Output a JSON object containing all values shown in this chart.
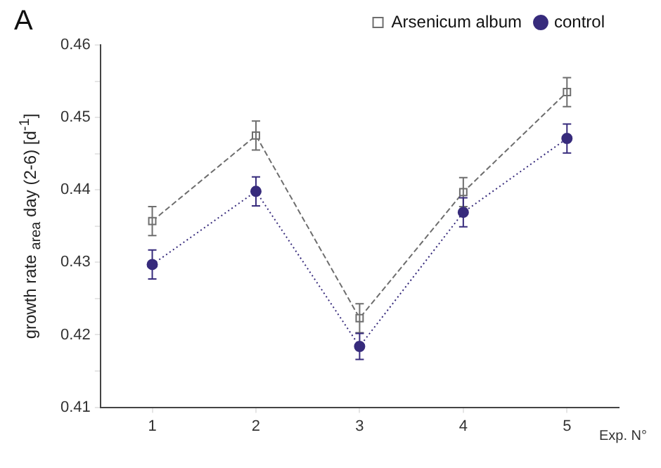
{
  "chart_data": {
    "type": "line",
    "annotations": [
      "A"
    ],
    "xlabel": "Exp. N°",
    "ylabel": "growth rate $_{area}$ day (2-6) [d$^{-1}$]",
    "x": [
      1,
      2,
      3,
      4,
      5
    ],
    "xlim": [
      0.5,
      5.5
    ],
    "xticks": [
      1,
      2,
      3,
      4,
      5
    ],
    "ylim": [
      0.41,
      0.46
    ],
    "yticks": [
      0.41,
      {
        "value": 0.415,
        "label": null
      },
      0.42,
      {
        "value": 0.425,
        "label": null
      },
      0.43,
      {
        "value": 0.435,
        "label": null
      },
      0.44,
      {
        "value": 0.445,
        "label": null
      },
      0.45,
      {
        "value": 0.455,
        "label": null
      },
      0.46
    ],
    "series": [
      {
        "name": "Arsenicum album",
        "color": "#6e6e6e",
        "marker": "square",
        "line_style": "dashed",
        "values": [
          0.4357,
          0.4475,
          0.4223,
          0.4397,
          0.4535
        ],
        "errors": [
          0.002,
          0.002,
          0.002,
          0.002,
          0.002
        ]
      },
      {
        "name": "control",
        "color": "#372b7c",
        "marker": "circle",
        "line_style": "dotted",
        "values": [
          0.4297,
          0.4398,
          0.4184,
          0.4369,
          0.4471
        ],
        "errors": [
          0.002,
          0.002,
          0.0018,
          0.002,
          0.002
        ]
      }
    ],
    "grid": false,
    "legend": "top right"
  }
}
